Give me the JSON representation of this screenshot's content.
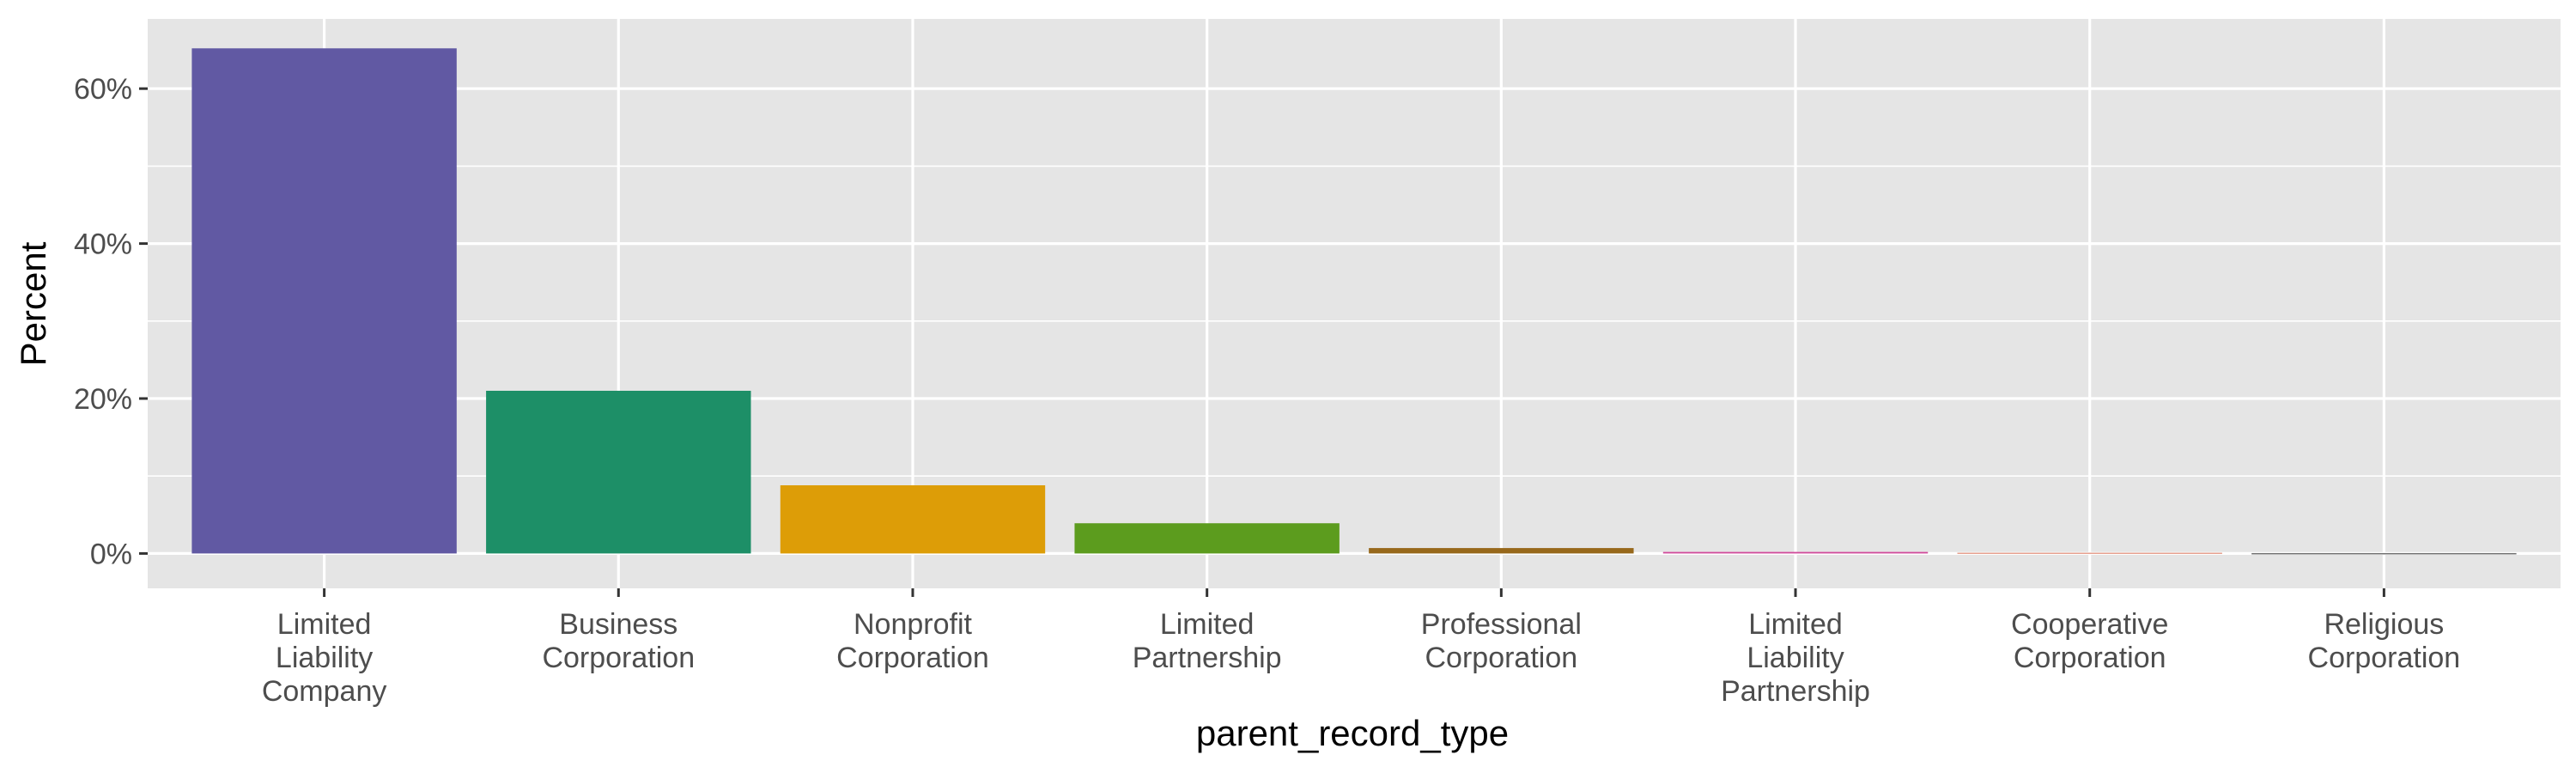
{
  "chart_data": {
    "type": "bar",
    "xlabel": "parent_record_type",
    "ylabel": "Percent",
    "ylim": [
      -0.045,
      0.69
    ],
    "y_ticks": [
      0,
      0.2,
      0.4,
      0.6
    ],
    "y_tick_labels": [
      "0%",
      "20%",
      "40%",
      "60%"
    ],
    "grid": true,
    "legend": "none",
    "categories": [
      "Limited Liability Company",
      "Business Corporation",
      "Nonprofit Corporation",
      "Limited Partnership",
      "Professional Corporation",
      "Limited Liability Partnership",
      "Cooperative Corporation",
      "Religious Corporation"
    ],
    "category_label_lines": [
      [
        "Limited",
        "Liability",
        "Company"
      ],
      [
        "Business",
        "Corporation"
      ],
      [
        "Nonprofit",
        "Corporation"
      ],
      [
        "Limited",
        "Partnership"
      ],
      [
        "Professional",
        "Corporation"
      ],
      [
        "Limited",
        "Liability",
        "Partnership"
      ],
      [
        "Cooperative",
        "Corporation"
      ],
      [
        "Religious",
        "Corporation"
      ]
    ],
    "values": [
      0.652,
      0.21,
      0.088,
      0.039,
      0.007,
      0.002,
      0.001,
      0.0005
    ],
    "colors": [
      "#6159a3",
      "#1d8f67",
      "#dd9d07",
      "#5c9c1e",
      "#97681b",
      "#d0499a",
      "#e6a08f",
      "#6f6f6f"
    ]
  }
}
